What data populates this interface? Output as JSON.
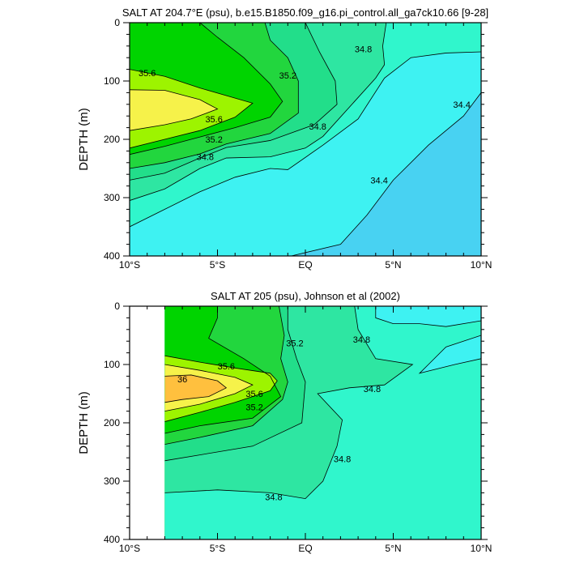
{
  "chart_data": [
    {
      "type": "contour",
      "title": "SALT AT 204.7°E (psu), b.e15.B1850.f09_g16.pi_control.all_ga7ck10.66 [9-28]",
      "xlabel": "",
      "ylabel": "DEPTH (m)",
      "xlim": [
        -10,
        10
      ],
      "ylim": [
        400,
        0
      ],
      "x_ticks": [
        -10,
        -5,
        0,
        5,
        10
      ],
      "x_tick_labels": [
        "10°S",
        "5°S",
        "EQ",
        "5°N",
        "10°N"
      ],
      "y_ticks": [
        0,
        100,
        200,
        300,
        400
      ],
      "y_tick_labels": [
        "0",
        "100",
        "200",
        "300",
        "400"
      ],
      "data_extent_x": [
        -10,
        10
      ],
      "band_floor": 34.2,
      "levels": [
        34.4,
        34.6,
        34.8,
        35.0,
        35.2,
        35.4,
        35.6,
        35.8,
        36.0
      ],
      "level_colors": [
        "#48d2f2",
        "#3ef2f2",
        "#30f6cc",
        "#2ee6a2",
        "#22de8a",
        "#22d63e",
        "#00d400",
        "#9df400",
        "#f6f24a",
        "#ffc03e"
      ],
      "contours": [
        {
          "level": 34.4,
          "points": [
            [
              -0.8,
              400
            ],
            [
              2,
              380
            ],
            [
              3.5,
              330
            ],
            [
              5,
              270
            ],
            [
              7,
              210
            ],
            [
              9,
              160
            ],
            [
              10,
              120
            ]
          ]
        },
        {
          "level": 34.6,
          "points": [
            [
              -10,
              350
            ],
            [
              -8,
              320
            ],
            [
              -6,
              290
            ],
            [
              -4,
              265
            ],
            [
              -2,
              250
            ],
            [
              -1,
              252
            ],
            [
              1,
              210
            ],
            [
              3,
              165
            ],
            [
              4.5,
              95
            ],
            [
              6,
              60
            ],
            [
              8,
              52
            ],
            [
              10,
              50
            ]
          ]
        },
        {
          "level": 34.8,
          "points": [
            [
              -10,
              305
            ],
            [
              -8,
              285
            ],
            [
              -6,
              250
            ],
            [
              -4.5,
              232
            ],
            [
              -2,
              230
            ],
            [
              0,
              215
            ],
            [
              1,
              195
            ],
            [
              2.8,
              135
            ],
            [
              4,
              95
            ],
            [
              4.5,
              72
            ],
            [
              4.4,
              40
            ],
            [
              4.6,
              0
            ]
          ]
        },
        {
          "level": 35.0,
          "points": [
            [
              -10,
              270
            ],
            [
              -8,
              258
            ],
            [
              -6,
              232
            ],
            [
              -4.5,
              214
            ],
            [
              -2,
              202
            ],
            [
              0.5,
              175
            ],
            [
              1.8,
              140
            ],
            [
              1.7,
              100
            ],
            [
              0.8,
              50
            ],
            [
              0,
              0
            ]
          ]
        },
        {
          "level": 35.2,
          "points": [
            [
              -10,
              250
            ],
            [
              -8,
              240
            ],
            [
              -6,
              225
            ],
            [
              -4.5,
              208
            ],
            [
              -2,
              190
            ],
            [
              -0.4,
              155
            ],
            [
              -0.4,
              100
            ],
            [
              -1,
              60
            ],
            [
              -2,
              30
            ],
            [
              -2.3,
              0
            ]
          ]
        },
        {
          "level": 35.4,
          "points": [
            [
              -10,
              226
            ],
            [
              -8,
              212
            ],
            [
              -6,
              196
            ],
            [
              -4,
              180
            ],
            [
              -2,
              162
            ],
            [
              -1.3,
              135
            ],
            [
              -2,
              105
            ],
            [
              -3.5,
              60
            ],
            [
              -5,
              25
            ],
            [
              -6,
              0
            ]
          ]
        },
        {
          "level": 35.6,
          "points": [
            [
              -10,
              80
            ],
            [
              -8,
              92
            ],
            [
              -6,
              112
            ],
            [
              -4.5,
              125
            ],
            [
              -3,
              138
            ],
            [
              -4,
              162
            ],
            [
              -6,
              185
            ],
            [
              -8,
              200
            ],
            [
              -10,
              215
            ]
          ]
        },
        {
          "level": 35.8,
          "points": [
            [
              -10,
              115
            ],
            [
              -8,
              116
            ],
            [
              -6,
              132
            ],
            [
              -5,
              148
            ],
            [
              -6.5,
              165
            ],
            [
              -8,
              175
            ],
            [
              -10,
              185
            ]
          ]
        }
      ],
      "contour_labels": [
        {
          "text": "35.6",
          "x": -9,
          "y": 86
        },
        {
          "text": "35.2",
          "x": -1,
          "y": 90
        },
        {
          "text": "34.8",
          "x": 3.3,
          "y": 45
        },
        {
          "text": "35.6",
          "x": -5.2,
          "y": 165
        },
        {
          "text": "35.2",
          "x": -5.2,
          "y": 200
        },
        {
          "text": "34.8",
          "x": 0.7,
          "y": 178
        },
        {
          "text": "34.8",
          "x": -5.7,
          "y": 230
        },
        {
          "text": "34.4",
          "x": 8.9,
          "y": 140
        },
        {
          "text": "34.4",
          "x": 4.2,
          "y": 270
        }
      ]
    },
    {
      "type": "contour",
      "title": "SALT AT 205 (psu), Johnson et al (2002)",
      "xlabel": "",
      "ylabel": "DEPTH (m)",
      "xlim": [
        -10,
        10
      ],
      "ylim": [
        400,
        0
      ],
      "x_ticks": [
        -10,
        -5,
        0,
        5,
        10
      ],
      "x_tick_labels": [
        "10°S",
        "5°S",
        "EQ",
        "5°N",
        "10°N"
      ],
      "y_ticks": [
        0,
        100,
        200,
        300,
        400
      ],
      "y_tick_labels": [
        "0",
        "100",
        "200",
        "300",
        "400"
      ],
      "data_extent_x": [
        -8,
        10
      ],
      "band_floor": 34.4,
      "levels": [
        34.6,
        34.8,
        35.0,
        35.2,
        35.4,
        35.6,
        35.8,
        36.0
      ],
      "level_colors": [
        "#3ef2f2",
        "#30f6cc",
        "#2ee6a2",
        "#22de8a",
        "#22d63e",
        "#00d400",
        "#9df400",
        "#f6f24a",
        "#ffc03e"
      ],
      "contours": [
        {
          "level": 34.6,
          "points": [
            [
              10,
              25
            ],
            [
              8,
              35
            ],
            [
              6.5,
              30
            ],
            [
              5,
              30
            ],
            [
              4,
              20
            ],
            [
              4,
              0
            ]
          ]
        },
        {
          "level": 34.6,
          "points": [
            [
              10,
              50
            ],
            [
              8,
              70
            ],
            [
              7,
              100
            ],
            [
              6.5,
              115
            ],
            [
              8.5,
              100
            ],
            [
              10,
              90
            ]
          ]
        },
        {
          "level": 34.8,
          "points": [
            [
              -8,
              320
            ],
            [
              -5,
              315
            ],
            [
              -2,
              320
            ],
            [
              0,
              330
            ],
            [
              1,
              300
            ],
            [
              1.8,
              240
            ],
            [
              2.1,
              195
            ],
            [
              0.7,
              150
            ],
            [
              2.5,
              140
            ],
            [
              4.5,
              135
            ],
            [
              6.1,
              100
            ],
            [
              4,
              90
            ],
            [
              3,
              40
            ],
            [
              2.8,
              0
            ]
          ]
        },
        {
          "level": 35.0,
          "points": [
            [
              -8,
              265
            ],
            [
              -6,
              255
            ],
            [
              -3,
              240
            ],
            [
              -0.2,
              200
            ],
            [
              0,
              130
            ],
            [
              -0.5,
              90
            ],
            [
              -1,
              40
            ],
            [
              -1,
              0
            ]
          ]
        },
        {
          "level": 35.2,
          "points": [
            [
              -8,
              237
            ],
            [
              -6,
              225
            ],
            [
              -3,
              205
            ],
            [
              -1.3,
              160
            ],
            [
              -1,
              130
            ],
            [
              -1.4,
              90
            ],
            [
              -1.2,
              50
            ],
            [
              -1.5,
              0
            ]
          ]
        },
        {
          "level": 35.4,
          "points": [
            [
              -8,
              218
            ],
            [
              -6,
              205
            ],
            [
              -3,
              192
            ],
            [
              -1.4,
              155
            ],
            [
              -2,
              120
            ],
            [
              -3.5,
              90
            ],
            [
              -5.5,
              55
            ],
            [
              -5,
              20
            ],
            [
              -5,
              0
            ]
          ]
        },
        {
          "level": 35.6,
          "points": [
            [
              -8,
              85
            ],
            [
              -6,
              96
            ],
            [
              -4,
              106
            ],
            [
              -2,
              115
            ],
            [
              -1.6,
              128
            ],
            [
              -2,
              145
            ],
            [
              -4,
              165
            ],
            [
              -6,
              182
            ],
            [
              -8,
              198
            ]
          ]
        },
        {
          "level": 35.8,
          "points": [
            [
              -8,
              100
            ],
            [
              -6,
              110
            ],
            [
              -4,
              122
            ],
            [
              -3,
              135
            ],
            [
              -4,
              150
            ],
            [
              -6,
              168
            ],
            [
              -8,
              180
            ]
          ]
        },
        {
          "level": 36.0,
          "points": [
            [
              -8,
              120
            ],
            [
              -6.5,
              118
            ],
            [
              -5,
              128
            ],
            [
              -4.5,
              140
            ],
            [
              -5.5,
              155
            ],
            [
              -7,
              160
            ],
            [
              -8,
              165
            ]
          ]
        }
      ],
      "contour_labels": [
        {
          "text": "35.6",
          "x": -4.5,
          "y": 103
        },
        {
          "text": "36",
          "x": -7,
          "y": 125
        },
        {
          "text": "35.6",
          "x": -2.9,
          "y": 150
        },
        {
          "text": "35.2",
          "x": -2.9,
          "y": 173
        },
        {
          "text": "35.2",
          "x": -0.6,
          "y": 63
        },
        {
          "text": "34.8",
          "x": 3.2,
          "y": 57
        },
        {
          "text": "34.8",
          "x": 3.8,
          "y": 142
        },
        {
          "text": "34.8",
          "x": 2.1,
          "y": 262
        },
        {
          "text": "34.8",
          "x": -1.8,
          "y": 327
        }
      ]
    }
  ]
}
